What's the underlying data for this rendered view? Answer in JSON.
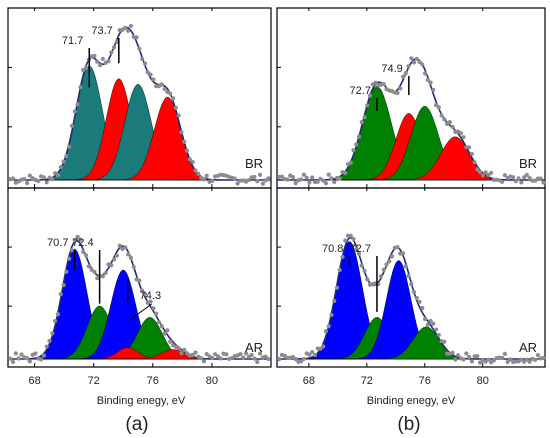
{
  "panels": [
    {
      "id": "a",
      "caption": "(a)",
      "xlabel": "Binding enegy, eV",
      "xticks": [
        68,
        72,
        76,
        80
      ],
      "xlim": [
        66.2,
        84.0
      ],
      "subplots": [
        {
          "tag": "BR",
          "components": [
            {
              "center": 71.7,
              "amp": 0.62,
              "sigma": 0.9,
              "color": "#1b7a7a"
            },
            {
              "center": 73.7,
              "amp": 0.55,
              "sigma": 0.85,
              "color": "#ff0000"
            },
            {
              "center": 75.0,
              "amp": 0.52,
              "sigma": 0.9,
              "color": "#1b7a7a"
            },
            {
              "center": 77.0,
              "amp": 0.45,
              "sigma": 0.9,
              "color": "#ff0000"
            }
          ],
          "labels": [
            {
              "text": "71.7",
              "x": 71.7
            },
            {
              "text": "73.7",
              "x": 73.7
            }
          ],
          "ymax": 0.88
        },
        {
          "tag": "AR",
          "components": [
            {
              "center": 70.7,
              "amp": 0.58,
              "sigma": 0.85,
              "color": "#0000ff"
            },
            {
              "center": 72.4,
              "amp": 0.28,
              "sigma": 0.85,
              "color": "#008000"
            },
            {
              "center": 74.0,
              "amp": 0.47,
              "sigma": 0.85,
              "color": "#0000ff"
            },
            {
              "center": 75.8,
              "amp": 0.22,
              "sigma": 0.85,
              "color": "#008000"
            },
            {
              "center": 74.3,
              "amp": 0.06,
              "sigma": 0.7,
              "color": "#ff0000"
            },
            {
              "center": 77.4,
              "amp": 0.05,
              "sigma": 0.8,
              "color": "#ff0000"
            }
          ],
          "labels": [
            {
              "text": "70.7",
              "x": 70.7
            },
            {
              "text": "72.4",
              "x": 72.4
            },
            {
              "text": "74.3",
              "x": 74.3
            }
          ],
          "ymax": 0.85
        }
      ]
    },
    {
      "id": "b",
      "caption": "(b)",
      "xlabel": "Binding enegy, eV",
      "xticks": [
        68,
        72,
        76,
        80
      ],
      "xlim": [
        65.8,
        84.3
      ],
      "subplots": [
        {
          "tag": "BR",
          "components": [
            {
              "center": 72.7,
              "amp": 0.52,
              "sigma": 1.0,
              "color": "#008000"
            },
            {
              "center": 74.9,
              "amp": 0.37,
              "sigma": 0.9,
              "color": "#ff0000"
            },
            {
              "center": 76.0,
              "amp": 0.41,
              "sigma": 0.95,
              "color": "#008000"
            },
            {
              "center": 78.1,
              "amp": 0.24,
              "sigma": 1.0,
              "color": "#ff0000"
            }
          ],
          "labels": [
            {
              "text": "72.7",
              "x": 72.7
            },
            {
              "text": "74.9",
              "x": 74.9
            }
          ],
          "ymax": 0.9
        },
        {
          "tag": "AR",
          "components": [
            {
              "center": 70.8,
              "amp": 0.62,
              "sigma": 0.9,
              "color": "#0000ff"
            },
            {
              "center": 72.7,
              "amp": 0.22,
              "sigma": 0.85,
              "color": "#008000"
            },
            {
              "center": 74.2,
              "amp": 0.52,
              "sigma": 0.85,
              "color": "#0000ff"
            },
            {
              "center": 76.1,
              "amp": 0.17,
              "sigma": 0.9,
              "color": "#008000"
            }
          ],
          "labels": [
            {
              "text": "70.8",
              "x": 70.8
            },
            {
              "text": "72.7",
              "x": 72.7
            }
          ],
          "ymax": 0.85
        }
      ]
    }
  ],
  "chart_data": [
    {
      "type": "area",
      "title": "",
      "panel": "a",
      "subplot": "BR",
      "xlabel": "Binding enegy, eV",
      "ylabel": "",
      "xlim": [
        66.2,
        84.0
      ],
      "peaks": [
        71.7,
        73.7
      ]
    },
    {
      "type": "area",
      "title": "",
      "panel": "a",
      "subplot": "AR",
      "xlabel": "Binding enegy, eV",
      "ylabel": "",
      "xlim": [
        66.2,
        84.0
      ],
      "peaks": [
        70.7,
        72.4,
        74.3
      ]
    },
    {
      "type": "area",
      "title": "",
      "panel": "b",
      "subplot": "BR",
      "xlabel": "Binding enegy, eV",
      "ylabel": "",
      "xlim": [
        65.8,
        84.3
      ],
      "peaks": [
        72.7,
        74.9
      ]
    },
    {
      "type": "area",
      "title": "",
      "panel": "b",
      "subplot": "AR",
      "xlabel": "Binding enegy, eV",
      "ylabel": "",
      "xlim": [
        65.8,
        84.3
      ],
      "peaks": [
        70.8,
        72.7
      ]
    }
  ],
  "colors": {
    "envelope": "#1f2a7a",
    "points": "#8c8c8c",
    "frame": "#000000"
  }
}
